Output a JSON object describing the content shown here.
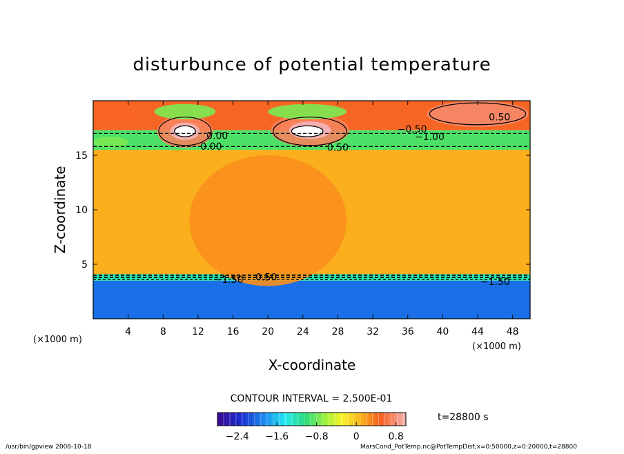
{
  "chart_data": {
    "type": "heatmap",
    "title": "disturbunce of potential temperature",
    "xlabel": "X-coordinate",
    "ylabel": "Z-coordinate",
    "x_unit": "(×1000 m)",
    "y_unit": "(×1000 m)",
    "xlim": [
      0,
      50
    ],
    "ylim": [
      0,
      20
    ],
    "x_ticks": [
      4,
      8,
      12,
      16,
      20,
      24,
      28,
      32,
      36,
      40,
      44,
      48
    ],
    "y_ticks": [
      5,
      10,
      15
    ],
    "contour_interval_text": "CONTOUR INTERVAL = 2.500E-01",
    "time_text": "t=28800 s",
    "colorbar": {
      "range": [
        -2.8,
        1.0
      ],
      "ticks": [
        -2.4,
        -1.6,
        -0.8,
        0,
        0.8
      ],
      "tick_labels": [
        "−2.4",
        "−1.6",
        "−0.8",
        "0",
        "0.8"
      ]
    },
    "fields": {
      "z_bins": [
        {
          "z": [
            0,
            3.5
          ],
          "value": -2.0
        },
        {
          "z": [
            3.5,
            4.1
          ],
          "value": -1.2
        },
        {
          "z": [
            4.1,
            15.5
          ],
          "value": 0.1
        },
        {
          "z": [
            15.5,
            17.3
          ],
          "value": -0.9
        },
        {
          "z": [
            17.3,
            20
          ],
          "value": 0.5
        }
      ]
    },
    "contour_labels": [
      {
        "text": "0.50",
        "x": 46.5,
        "z": 18.2
      },
      {
        "text": "−0.50",
        "x": 36.5,
        "z": 17.1
      },
      {
        "text": "−1.00",
        "x": 38.5,
        "z": 16.4
      },
      {
        "text": "0.00",
        "x": 14.2,
        "z": 16.5
      },
      {
        "text": "0.00",
        "x": 13.5,
        "z": 15.5
      },
      {
        "text": "0.50",
        "x": 28.0,
        "z": 15.4
      },
      {
        "text": "−1.50",
        "x": 15.5,
        "z": 3.3
      },
      {
        "text": "0.50",
        "x": 19.8,
        "z": 3.5
      },
      {
        "text": "−1.50",
        "x": 46.0,
        "z": 3.1
      }
    ],
    "footer": {
      "left": "/usr/bin/gpview   2008-10-18",
      "right": "MarsCond_PotTemp.nc@PotTempDist,x=0:50000,z=0:20000,t=28800"
    }
  }
}
